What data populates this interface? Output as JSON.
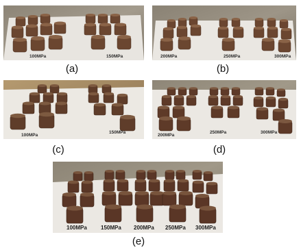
{
  "panels": [
    {
      "id": "a",
      "caption": "(a)",
      "labels": [
        "100MPa",
        "150MPa"
      ]
    },
    {
      "id": "b",
      "caption": "(b)",
      "labels": [
        "200MPa",
        "250MPa",
        "300MPa"
      ]
    },
    {
      "id": "c",
      "caption": "(c)",
      "labels": [
        "100MPa",
        "150MPa"
      ]
    },
    {
      "id": "d",
      "caption": "(d)",
      "labels": [
        "200MPa",
        "250MPa",
        "300MPa"
      ]
    },
    {
      "id": "e",
      "caption": "(e)",
      "labels": [
        "100MPa",
        "150MPa",
        "200MPa",
        "250MPa",
        "300MPa"
      ]
    }
  ],
  "colors": {
    "granite": "#8f8778",
    "paper": "#e9e6e1",
    "sample_side": "#6b4630",
    "sample_top": "#8a6347",
    "sample_dark": "#4a2f20"
  }
}
